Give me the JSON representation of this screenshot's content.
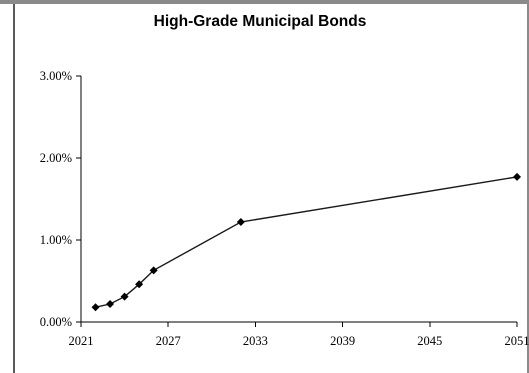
{
  "chart_data": {
    "type": "line",
    "title": "High-Grade Municipal Bonds",
    "xlabel": "",
    "ylabel": "",
    "xlim": [
      2021,
      2051
    ],
    "ylim": [
      0,
      3
    ],
    "x_ticks": [
      2021,
      2027,
      2033,
      2039,
      2045,
      2051
    ],
    "y_ticks": [
      0,
      1,
      2,
      3
    ],
    "y_tick_labels": [
      "0.00%",
      "1.00%",
      "2.00%",
      "3.00%"
    ],
    "grid": false,
    "legend": "none",
    "series": [
      {
        "color": "#000000",
        "marker": "diamond",
        "x": [
          2022,
          2023,
          2024,
          2025,
          2026,
          2032,
          2051
        ],
        "y": [
          0.18,
          0.22,
          0.31,
          0.46,
          0.63,
          1.22,
          1.77
        ]
      }
    ]
  }
}
